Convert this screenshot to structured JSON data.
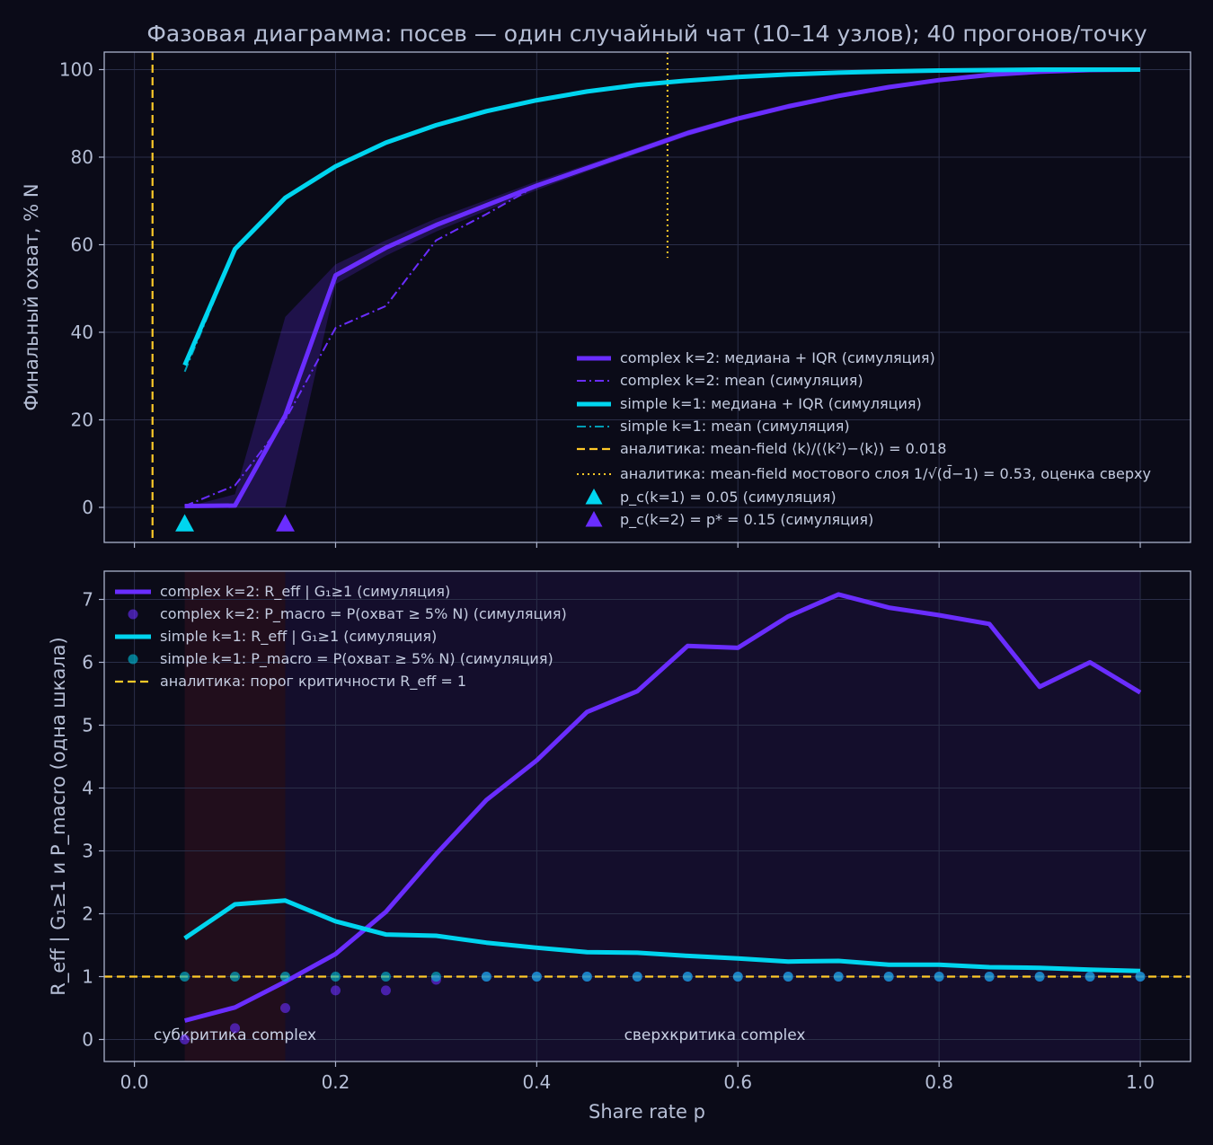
{
  "title": "Фазовая диаграмма: посев — один случайный чат (10–14 узлов); 40 прогонов/точку",
  "colors": {
    "background": "#0b0b18",
    "axes_bg": "#0b0b18",
    "complex": "#6a2dff",
    "simple": "#00d5ef",
    "analytic": "#ffc928",
    "text": "#b6bfd6"
  },
  "chart_data": [
    {
      "type": "line",
      "title": "Фазовая диаграмма: посев — один случайный чат (10–14 узлов); 40 прогонов/точку",
      "xlabel": "",
      "ylabel": "Финальный охват, % N",
      "xlim": [
        -0.03,
        1.05
      ],
      "ylim": [
        -8,
        104
      ],
      "yticks": [
        "0",
        "20",
        "40",
        "60",
        "80",
        "100"
      ],
      "grid": true,
      "legend_position": "lower right",
      "series": [
        {
          "name": "complex k=2: медиана + IQR (симуляция)",
          "x": [
            0.05,
            0.1,
            0.15,
            0.2,
            0.25,
            0.3,
            0.35,
            0.4,
            0.45,
            0.5,
            0.55,
            0.6,
            0.65,
            0.7,
            0.75,
            0.8,
            0.85,
            0.9,
            0.95,
            1.0
          ],
          "y": [
            0.3,
            0.4,
            21,
            53,
            59.3,
            64.5,
            69,
            73.5,
            77.5,
            81.5,
            85.5,
            88.8,
            91.6,
            94,
            96,
            97.6,
            98.8,
            99.5,
            99.9,
            100
          ],
          "iqr_low": [
            0,
            0,
            0,
            51,
            57.5,
            63,
            67.8,
            72.5,
            76.7,
            80.8,
            84.8,
            88.2,
            91,
            93.5,
            95.6,
            97.3,
            98.6,
            99.4,
            99.8,
            100
          ],
          "iqr_high": [
            0,
            3,
            43.5,
            55.5,
            61,
            66,
            70.2,
            74.5,
            78.3,
            82.2,
            86.2,
            89.4,
            92.2,
            94.5,
            96.4,
            97.9,
            99,
            99.7,
            100,
            100
          ]
        },
        {
          "name": "complex k=2: mean (симуляция)",
          "x": [
            0.05,
            0.1,
            0.15,
            0.2,
            0.25,
            0.3,
            0.35,
            0.4
          ],
          "y": [
            0.3,
            5,
            20,
            41,
            46,
            61,
            67,
            73.5
          ]
        },
        {
          "name": "simple k=1: медиана + IQR (симуляция)",
          "x": [
            0.05,
            0.1,
            0.15,
            0.2,
            0.25,
            0.3,
            0.35,
            0.4,
            0.45,
            0.5,
            0.55,
            0.6,
            0.65,
            0.7,
            0.75,
            0.8,
            0.85,
            0.9,
            0.95,
            1.0
          ],
          "y": [
            32.5,
            59,
            70.7,
            77.9,
            83.3,
            87.3,
            90.5,
            93,
            95,
            96.5,
            97.5,
            98.3,
            98.9,
            99.3,
            99.6,
            99.8,
            99.9,
            100,
            100,
            100
          ]
        },
        {
          "name": "simple k=1: mean (симуляция)",
          "x": [
            0.05,
            0.1,
            0.15,
            0.2,
            0.25,
            0.3,
            0.35,
            0.4,
            0.45,
            0.5,
            0.55,
            0.6,
            0.65,
            0.7,
            0.75,
            0.8,
            0.85,
            0.9,
            0.95,
            1.0
          ],
          "y": [
            31,
            58.7,
            70.5,
            77.8,
            83.2,
            87.2,
            90.4,
            93,
            95,
            96.5,
            97.5,
            98.3,
            98.9,
            99.3,
            99.6,
            99.8,
            99.9,
            100,
            100,
            100
          ]
        },
        {
          "name": "аналитика: mean-field ⟨k⟩/(⟨k²⟩−⟨k⟩) = 0.018",
          "x_vline": 0.018
        },
        {
          "name": "аналитика: mean-field мостового слоя 1/√(d̄−1) = 0.53, оценка сверху",
          "x_vline": 0.53,
          "y_range": [
            57,
            104
          ]
        },
        {
          "name": "p_c(k=1) = 0.05 (симуляция)",
          "x": [
            0.05
          ],
          "y": [
            -3.8
          ]
        },
        {
          "name": "p_c(k=2) = p* = 0.15 (симуляция)",
          "x": [
            0.15
          ],
          "y": [
            -3.8
          ]
        }
      ]
    },
    {
      "type": "line",
      "xlabel": "Share rate p",
      "ylabel": "R_eff | G₁≥1 и P_macro (одна шкала)",
      "xlim": [
        -0.03,
        1.05
      ],
      "ylim": [
        -0.35,
        7.45
      ],
      "xticks": [
        "0.0",
        "0.2",
        "0.4",
        "0.6",
        "0.8",
        "1.0"
      ],
      "yticks": [
        "0",
        "1",
        "2",
        "3",
        "4",
        "5",
        "6",
        "7"
      ],
      "grid": true,
      "legend_position": "upper left",
      "regions": [
        {
          "label": "субкритика complex",
          "x_range": [
            0.05,
            0.15
          ]
        },
        {
          "label": "сверхкритика complex",
          "x_range": [
            0.15,
            1.0
          ]
        }
      ],
      "series": [
        {
          "name": "complex k=2: R_eff | G₁≥1 (симуляция)",
          "x": [
            0.05,
            0.1,
            0.15,
            0.2,
            0.25,
            0.3,
            0.35,
            0.4,
            0.45,
            0.5,
            0.55,
            0.6,
            0.65,
            0.7,
            0.75,
            0.8,
            0.85,
            0.9,
            0.95,
            1.0
          ],
          "y": [
            0.3,
            0.51,
            0.92,
            1.36,
            2.03,
            2.95,
            3.81,
            4.44,
            5.21,
            5.54,
            6.26,
            6.23,
            6.73,
            7.08,
            6.87,
            6.75,
            6.61,
            5.61,
            6.0,
            5.52
          ]
        },
        {
          "name": "complex k=2: P_macro = P(охват ≥ 5% N) (симуляция)",
          "x": [
            0.05,
            0.1,
            0.15,
            0.2,
            0.25,
            0.3,
            0.35,
            0.4,
            0.45,
            0.5,
            0.55,
            0.6,
            0.65,
            0.7,
            0.75,
            0.8,
            0.85,
            0.9,
            0.95,
            1.0
          ],
          "y": [
            0.0,
            0.18,
            0.5,
            0.78,
            0.78,
            0.95,
            1,
            1,
            1,
            1,
            1,
            1,
            1,
            1,
            1,
            1,
            1,
            1,
            1,
            1
          ]
        },
        {
          "name": "simple k=1: R_eff | G₁≥1 (симуляция)",
          "x": [
            0.05,
            0.1,
            0.15,
            0.2,
            0.25,
            0.3,
            0.35,
            0.4,
            0.45,
            0.5,
            0.55,
            0.6,
            0.65,
            0.7,
            0.75,
            0.8,
            0.85,
            0.9,
            0.95,
            1.0
          ],
          "y": [
            1.61,
            2.15,
            2.21,
            1.88,
            1.67,
            1.65,
            1.54,
            1.46,
            1.39,
            1.38,
            1.33,
            1.29,
            1.24,
            1.25,
            1.19,
            1.19,
            1.15,
            1.14,
            1.11,
            1.09
          ]
        },
        {
          "name": "simple k=1: P_macro = P(охват ≥ 5% N) (симуляция)",
          "x": [
            0.05,
            0.1,
            0.15,
            0.2,
            0.25,
            0.3,
            0.35,
            0.4,
            0.45,
            0.5,
            0.55,
            0.6,
            0.65,
            0.7,
            0.75,
            0.8,
            0.85,
            0.9,
            0.95,
            1.0
          ],
          "y": [
            1,
            1,
            1,
            1,
            1,
            1,
            1,
            1,
            1,
            1,
            1,
            1,
            1,
            1,
            1,
            1,
            1,
            1,
            1,
            1
          ]
        },
        {
          "name": "аналитика: порог критичности R_eff = 1",
          "y_hline": 1
        }
      ]
    }
  ]
}
